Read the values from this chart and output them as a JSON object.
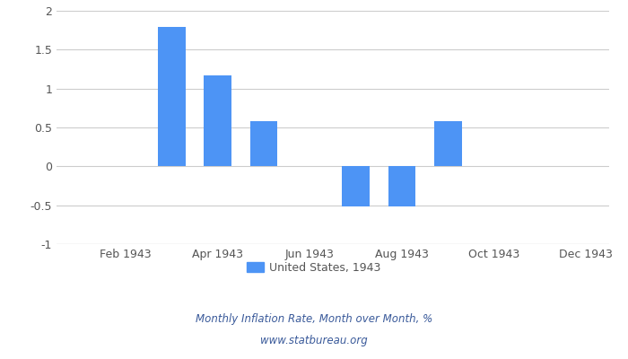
{
  "month_positions": [
    1,
    2,
    3,
    4,
    5,
    6,
    7,
    8,
    9,
    10,
    11,
    12
  ],
  "values": [
    0.0,
    0.0,
    1.79,
    1.17,
    0.58,
    0.0,
    -0.52,
    -0.52,
    0.58,
    0.0,
    0.0,
    0.0
  ],
  "bar_color": "#4d94f5",
  "xlabel_ticks": [
    "Feb 1943",
    "Apr 1943",
    "Jun 1943",
    "Aug 1943",
    "Oct 1943",
    "Dec 1943"
  ],
  "xlabel_tick_positions": [
    2,
    4,
    6,
    8,
    10,
    12
  ],
  "ylim": [
    -1.0,
    2.0
  ],
  "yticks": [
    -1.0,
    -0.5,
    0.0,
    0.5,
    1.0,
    1.5,
    2.0
  ],
  "legend_label": "United States, 1943",
  "footer_line1": "Monthly Inflation Rate, Month over Month, %",
  "footer_line2": "www.statbureau.org",
  "footer_color": "#3a5a9a",
  "grid_color": "#cccccc",
  "background_color": "#ffffff",
  "tick_label_color": "#555555",
  "bar_width": 0.6
}
